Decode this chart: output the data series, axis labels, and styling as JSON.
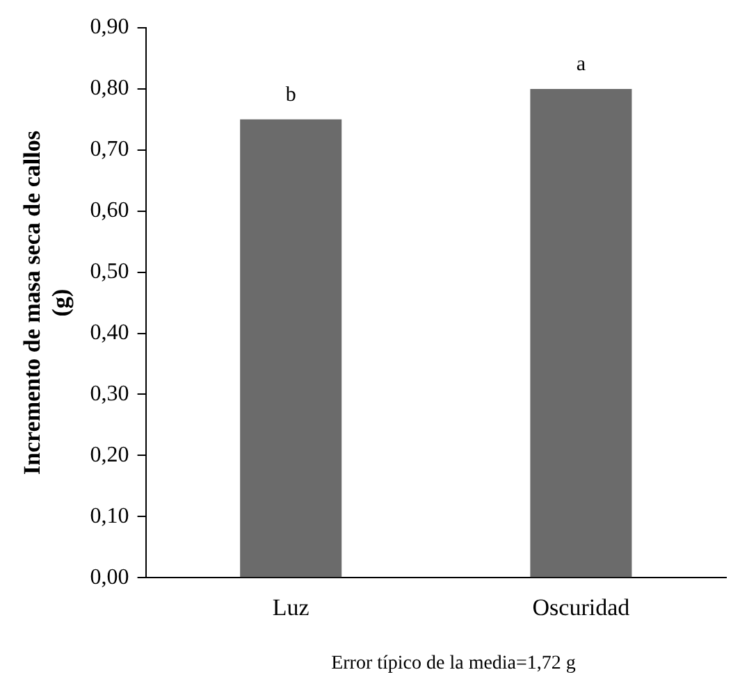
{
  "chart_data": {
    "type": "bar",
    "ylabel": "Incremento de masa seca de callos (g)",
    "categories": [
      "Luz",
      "Oscuridad"
    ],
    "values": [
      0.75,
      0.8
    ],
    "color": "#6b6b6b",
    "ylim": [
      0,
      0.9
    ],
    "yticks": [
      {
        "value": 0,
        "label": "0,00"
      },
      {
        "value": 0.1,
        "label": "0,10"
      },
      {
        "value": 0.2,
        "label": "0,20"
      },
      {
        "value": 0.3,
        "label": "0,30"
      },
      {
        "value": 0.4,
        "label": "0,40"
      },
      {
        "value": 0.5,
        "label": "0,50"
      },
      {
        "value": 0.6,
        "label": "0,60"
      },
      {
        "value": 0.7,
        "label": "0,70"
      },
      {
        "value": 0.8,
        "label": "0,80"
      },
      {
        "value": 0.9,
        "label": "0,90"
      }
    ],
    "grid": false,
    "legend": false,
    "annotations": [
      {
        "text": "b",
        "x": "Luz",
        "y": 0.75
      },
      {
        "text": "a",
        "x": "Oscuridad",
        "y": 0.8
      },
      "Error típico de la media=1,72  g"
    ]
  }
}
